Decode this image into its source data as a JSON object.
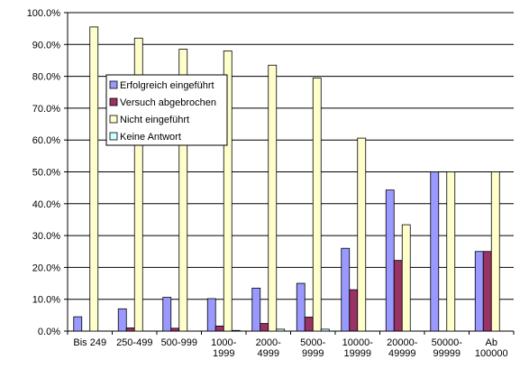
{
  "chart_data": {
    "type": "bar",
    "title": "",
    "xlabel": "",
    "ylabel": "",
    "ylim": [
      0,
      100
    ],
    "ytick_step": 10,
    "ytick_format": "percent_1dp",
    "grid": "horizontal",
    "legend_position": "upper-left-inside",
    "categories": [
      [
        "Bis 249"
      ],
      [
        "250-499"
      ],
      [
        "500-999"
      ],
      [
        "1000-",
        "1999"
      ],
      [
        "2000-",
        "4999"
      ],
      [
        "5000-",
        "9999"
      ],
      [
        "10000-",
        "19999"
      ],
      [
        "20000-",
        "49999"
      ],
      [
        "50000-",
        "99999"
      ],
      [
        "Ab",
        "100000"
      ]
    ],
    "series": [
      {
        "name": "Erfolgreich eingeführt",
        "color": "#9999FF",
        "values": [
          4.5,
          7.0,
          10.6,
          10.2,
          13.5,
          15.0,
          26.0,
          44.3,
          50.0,
          25.0
        ]
      },
      {
        "name": "Versuch abgebrochen",
        "color": "#993366",
        "values": [
          0.0,
          1.0,
          0.9,
          1.6,
          2.4,
          4.4,
          13.0,
          22.2,
          0.0,
          25.0
        ]
      },
      {
        "name": "Nicht eingeführt",
        "color": "#FFFFCC",
        "values": [
          95.5,
          92.0,
          88.5,
          88.0,
          83.5,
          79.5,
          60.6,
          33.4,
          50.0,
          50.0
        ]
      },
      {
        "name": "Keine Antwort",
        "color": "#CCFFFF",
        "values": [
          0.0,
          0.0,
          0.0,
          0.2,
          0.6,
          0.6,
          0.0,
          0.0,
          0.0,
          0.0
        ]
      }
    ]
  }
}
